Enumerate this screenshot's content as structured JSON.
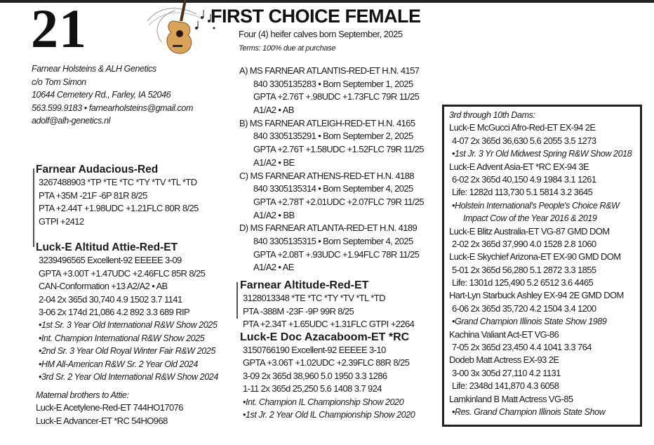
{
  "lot_number": "21",
  "title": "FIRST CHOICE FEMALE",
  "subtitle": "Four (4) heifer calves born September, 2025",
  "terms": "Terms: 100% due at purchase",
  "consignor": [
    "Farnear Holsteins & ALH Genetics",
    "c/o Tom Simon",
    "10644 Cemetery Rd., Farley, IA   52046",
    "563.599.9183  •  farnearholsteins@gmail.com",
    "adolf@alh-genetics.nl"
  ],
  "sire": [
    {
      "t": "Farnear Audacious-Red",
      "s": "bold"
    },
    {
      "t": "3267488903     *TP *TE *TC *TY *TV *TL *TD",
      "s": "ind"
    },
    {
      "t": "PTA +35M -21F -6P 81R 8/25",
      "s": "ind"
    },
    {
      "t": "PTA +2.44T +1.98UDC +1.21FLC 80R 8/25",
      "s": "ind"
    },
    {
      "t": "GTPI +2412",
      "s": "ind"
    }
  ],
  "dam": [
    {
      "t": "Luck-E Altitud Attie-Red-ET",
      "s": "bold"
    },
    {
      "t": "3239496565   Excellent-92 EEEEE  3-09",
      "s": "ind"
    },
    {
      "t": "GPTA +3.00T +1.47UDC +2.46FLC 85R 8/25",
      "s": "ind"
    },
    {
      "t": "CAN-Conformation +13    A2/A2  •  AB",
      "s": "ind"
    },
    {
      "t": "2-04  2x  365d  30,740  4.9  1502  3.7  1141",
      "s": "ind"
    },
    {
      "t": "3-06  2x  174d  21,086  4.2    892  3.3    689 RIP",
      "s": "ind"
    },
    {
      "t": "•1st Sr. 3 Year Old International R&W Show 2025",
      "s": "it ind"
    },
    {
      "t": "•Int. Champion International R&W Show 2025",
      "s": "it ind"
    },
    {
      "t": "•2nd Sr. 3 Year Old Royal Winter Fair R&W 2025",
      "s": "it ind"
    },
    {
      "t": "•HM All-American R&W Sr. 2 Year Old 2024",
      "s": "it ind"
    },
    {
      "t": "•3rd Sr. 2 Year Old International R&W Show 2024",
      "s": "it ind"
    }
  ],
  "brothers": [
    {
      "t": "Maternal brothers to Attie:",
      "s": "it"
    },
    {
      "t": "Luck-E Acetylene-Red-ET  744HO17076",
      "s": ""
    },
    {
      "t": "Luck-E Advancer-ET *RC 54HO968",
      "s": ""
    }
  ],
  "calves": [
    {
      "t": "A) MS FARNEAR ATLANTIS-RED-ET    H.N. 4157",
      "s": "cn"
    },
    {
      "t": "840 3305135283  •  Born September 1, 2025",
      "s": "ind2"
    },
    {
      "t": "GPTA +2.76T +.98UDC +1.73FLC 79R 11/25",
      "s": "ind2"
    },
    {
      "t": "A1/A2  •  AB",
      "s": "ind2"
    },
    {
      "t": "B) MS FARNEAR ATLEIGH-RED-ET     H.N. 4165",
      "s": "cn"
    },
    {
      "t": "840 3305135291  •  Born September 2, 2025",
      "s": "ind2"
    },
    {
      "t": "GPTA +2.76T +1.58UDC +1.52FLC 79R 11/25",
      "s": "ind2"
    },
    {
      "t": "A1/A2  •  BE",
      "s": "ind2"
    },
    {
      "t": "C) MS FARNEAR ATHENS-RED-ET    H.N. 4188",
      "s": "cn"
    },
    {
      "t": "840 3305135314  •  Born September 4, 2025",
      "s": "ind2"
    },
    {
      "t": "GPTA +2.78T +2.01UDC +2.07FLC 79R 11/25",
      "s": "ind2"
    },
    {
      "t": "A1/A2  •  BB",
      "s": "ind2"
    },
    {
      "t": "D) MS FARNEAR ATLANTA-RED-ET    H.N. 4189",
      "s": "cn"
    },
    {
      "t": "840 3305135315  •  Born September 4, 2025",
      "s": "ind2"
    },
    {
      "t": " GPTA +2.08T +.93UDC +1.94FLC  78R 11/25",
      "s": "ind2"
    },
    {
      "t": "A1/A2  •  AE",
      "s": "ind2"
    }
  ],
  "calf_sire": [
    {
      "t": "Farnear Altitude-Red-ET",
      "s": "bold"
    },
    {
      "t": "3128013348   *TE *TC *TY *TV *TL *TD",
      "s": "ind"
    },
    {
      "t": "PTA -388M -23F -9P 99R 8/25",
      "s": "ind"
    },
    {
      "t": "PTA +2.34T +1.65UDC +1.31FLC GTPI +2264",
      "s": "ind"
    },
    {
      "t": "Luck-E Doc Azacaboom-ET *RC",
      "s": "bold"
    },
    {
      "t": "3150766190    Excellent-92 EEEEE  3-10",
      "s": "ind"
    },
    {
      "t": "GPTA +3.06T +1.02UDC +2.39FLC 88R 8/25",
      "s": "ind"
    },
    {
      "t": "3-09  2x  365d  38,960  5.0  1950  3.3  1286",
      "s": "ind"
    },
    {
      "t": "1-11  2x  365d  25,250  5.6  1408  3.7     924",
      "s": "ind"
    },
    {
      "t": "•Int. Champion IL Championship Show 2020",
      "s": "it ind"
    },
    {
      "t": "•1st Jr. 2 Year Old IL Championship Show 2020",
      "s": "it ind"
    }
  ],
  "dams_box": [
    {
      "t": "3rd through 10th Dams:",
      "s": "it"
    },
    {
      "t": "Luck-E McGucci Afro-Red-ET EX-94 2E",
      "s": ""
    },
    {
      "t": "4-07  2x  365d  36,630  5.6  2055  3.5  1273",
      "s": "ind"
    },
    {
      "t": "•1st Jr. 3 Yr Old Midwest Spring R&W Show 2018",
      "s": "it ind"
    },
    {
      "t": "Luck-E Advent Asia-ET *RC EX-94 3E",
      "s": ""
    },
    {
      "t": "6-02  2x  365d  40,150  4.9  1984  3.1  1261",
      "s": "ind"
    },
    {
      "t": "Life:    1282d  113,730  5.1  5814  3.2  3645",
      "s": "ind"
    },
    {
      "t": "•Holstein International's People's Choice R&W",
      "s": "it ind"
    },
    {
      "t": "Impact Cow of the Year 2016 & 2019",
      "s": "it ind2"
    },
    {
      "t": "Luck-E Blitz Australia-ET VG-87 GMD DOM",
      "s": ""
    },
    {
      "t": "2-02  2x  365d  37,990  4.0  1528  2.8  1060",
      "s": "ind"
    },
    {
      "t": "Luck-E Skychief Arizona-ET EX-90 GMD DOM",
      "s": ""
    },
    {
      "t": "5-01  2x  365d  56,280  5.1  2872  3.3  1855",
      "s": "ind"
    },
    {
      "t": "Life:    1301d  125,490  5.2  6512  3.6  4465",
      "s": "ind"
    },
    {
      "t": "Hart-Lyn Starbuck Ashley EX-94 2E GMD DOM",
      "s": ""
    },
    {
      "t": "6-06  2x  365d  35,720  4.2  1504  3.4  1200",
      "s": "ind"
    },
    {
      "t": "•Grand Champion Illinois State Show 1989",
      "s": "it ind"
    },
    {
      "t": "Kachina Valiant Act-ET VG-86",
      "s": ""
    },
    {
      "t": "7-05  2x  365d  23,450  4.4  1041  3.3  764",
      "s": "ind"
    },
    {
      "t": "Dodeb Matt Actress EX-93 2E",
      "s": ""
    },
    {
      "t": "3-00  3x  305d  27,110  4.2  1131",
      "s": "ind"
    },
    {
      "t": "Life:    2348d  141,870  4.3  6058",
      "s": "ind"
    },
    {
      "t": "Lamkinland B Matt Actress VG-85",
      "s": ""
    },
    {
      "t": "•Res. Grand Champion Illinois State Show",
      "s": "it ind"
    }
  ]
}
